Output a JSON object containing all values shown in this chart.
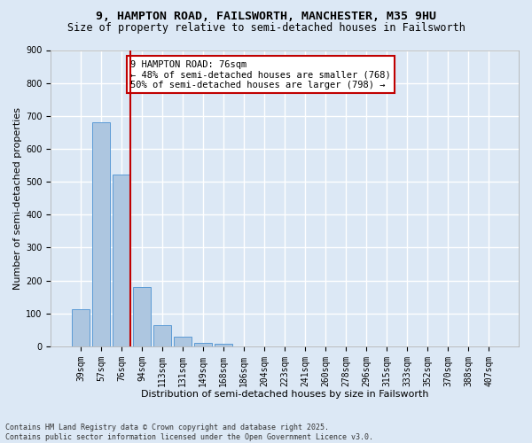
{
  "title_line1": "9, HAMPTON ROAD, FAILSWORTH, MANCHESTER, M35 9HU",
  "title_line2": "Size of property relative to semi-detached houses in Failsworth",
  "xlabel": "Distribution of semi-detached houses by size in Failsworth",
  "ylabel": "Number of semi-detached properties",
  "categories": [
    "39sqm",
    "57sqm",
    "76sqm",
    "94sqm",
    "113sqm",
    "131sqm",
    "149sqm",
    "168sqm",
    "186sqm",
    "204sqm",
    "223sqm",
    "241sqm",
    "260sqm",
    "278sqm",
    "296sqm",
    "315sqm",
    "333sqm",
    "352sqm",
    "370sqm",
    "388sqm",
    "407sqm"
  ],
  "values": [
    113,
    681,
    521,
    181,
    65,
    30,
    11,
    7,
    0,
    0,
    0,
    0,
    0,
    0,
    0,
    0,
    0,
    0,
    0,
    0,
    0
  ],
  "bar_color": "#adc6e0",
  "bar_edge_color": "#5b9bd5",
  "highlight_index": 2,
  "highlight_line_color": "#c00000",
  "annotation_text": "9 HAMPTON ROAD: 76sqm\n← 48% of semi-detached houses are smaller (768)\n50% of semi-detached houses are larger (798) →",
  "annotation_box_color": "#ffffff",
  "annotation_box_edge_color": "#c00000",
  "ylim": [
    0,
    900
  ],
  "yticks": [
    0,
    100,
    200,
    300,
    400,
    500,
    600,
    700,
    800,
    900
  ],
  "bg_color": "#dce8f5",
  "plot_bg_color": "#dce8f5",
  "grid_color": "#ffffff",
  "footnote": "Contains HM Land Registry data © Crown copyright and database right 2025.\nContains public sector information licensed under the Open Government Licence v3.0.",
  "title_fontsize": 9.5,
  "subtitle_fontsize": 8.5,
  "axis_label_fontsize": 8,
  "tick_fontsize": 7,
  "annotation_fontsize": 7.5
}
